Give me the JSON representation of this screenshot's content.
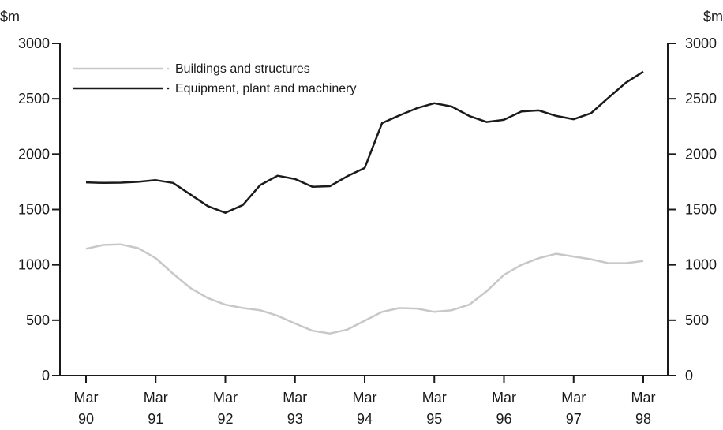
{
  "chart_data": {
    "type": "line",
    "y_unit_left": "$m",
    "y_unit_right": "$m",
    "ylim": [
      0,
      3000
    ],
    "y_ticks": [
      0,
      500,
      1000,
      1500,
      2000,
      2500,
      3000
    ],
    "x_ticks": [
      {
        "line1": "Mar",
        "line2": "90"
      },
      {
        "line1": "Mar",
        "line2": "91"
      },
      {
        "line1": "Mar",
        "line2": "92"
      },
      {
        "line1": "Mar",
        "line2": "93"
      },
      {
        "line1": "Mar",
        "line2": "94"
      },
      {
        "line1": "Mar",
        "line2": "95"
      },
      {
        "line1": "Mar",
        "line2": "96"
      },
      {
        "line1": "Mar",
        "line2": "97"
      },
      {
        "line1": "Mar",
        "line2": "98"
      }
    ],
    "x": [
      "Mar 90",
      "Jun 90",
      "Sep 90",
      "Dec 90",
      "Mar 91",
      "Jun 91",
      "Sep 91",
      "Dec 91",
      "Mar 92",
      "Jun 92",
      "Sep 92",
      "Dec 92",
      "Mar 93",
      "Jun 93",
      "Sep 93",
      "Dec 93",
      "Mar 94",
      "Jun 94",
      "Sep 94",
      "Dec 94",
      "Mar 95",
      "Jun 95",
      "Sep 95",
      "Dec 95",
      "Mar 96",
      "Jun 96",
      "Sep 96",
      "Dec 96",
      "Mar 97",
      "Jun 97",
      "Sep 97",
      "Dec 97",
      "Mar 98"
    ],
    "grid": false,
    "legend_position": "top-left",
    "series": [
      {
        "name": "Buildings and structures",
        "color": "#c8c8c8",
        "values": [
          1145,
          1180,
          1185,
          1150,
          1060,
          920,
          790,
          700,
          640,
          610,
          590,
          540,
          470,
          405,
          380,
          415,
          495,
          575,
          610,
          605,
          575,
          590,
          640,
          760,
          910,
          1000,
          1060,
          1100,
          1075,
          1050,
          1015,
          1015,
          1035
        ]
      },
      {
        "name": "Equipment, plant and machinery",
        "color": "#1a1a1a",
        "values": [
          1745,
          1740,
          1742,
          1750,
          1765,
          1740,
          1635,
          1530,
          1470,
          1540,
          1720,
          1805,
          1775,
          1705,
          1710,
          1800,
          1875,
          2280,
          2350,
          2415,
          2460,
          2430,
          2345,
          2290,
          2310,
          2385,
          2395,
          2345,
          2315,
          2370,
          2510,
          2645,
          2745
        ]
      }
    ]
  }
}
